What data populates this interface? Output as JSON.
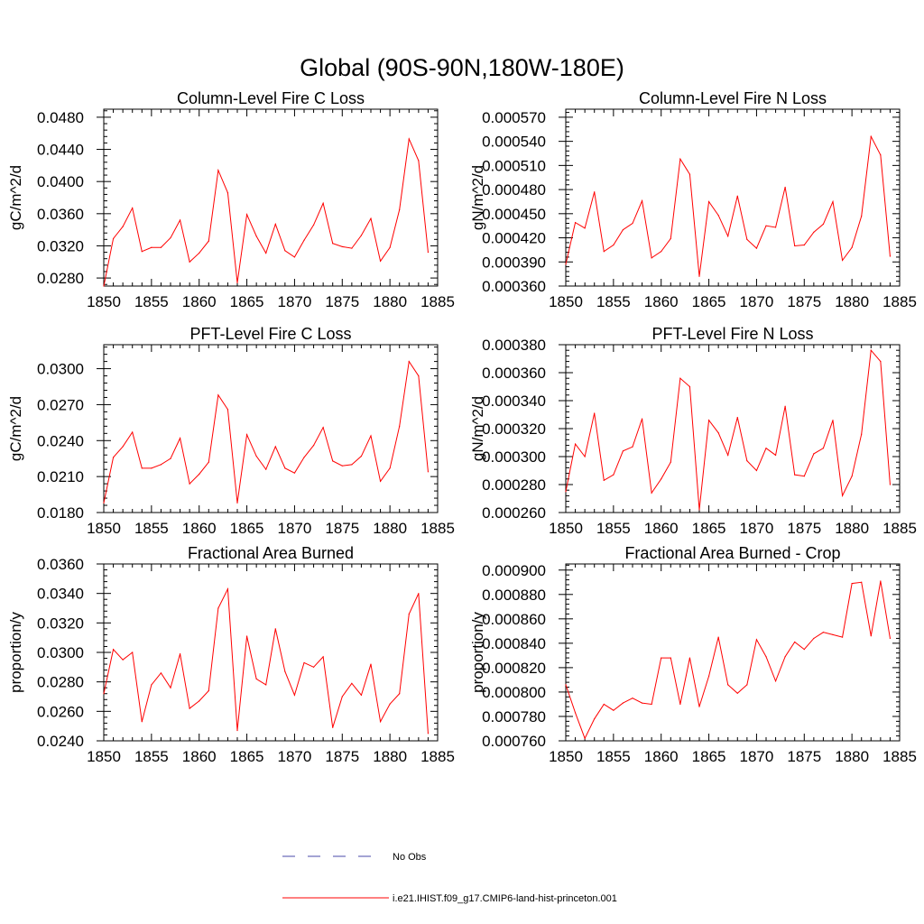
{
  "title": "Global (90S-90N,180W-180E)",
  "colors": {
    "series": "#ff0000",
    "no_obs": "#4a4aa8",
    "axis": "#000000"
  },
  "legend": {
    "entries": [
      {
        "label": "No Obs",
        "style": "dashed",
        "color": "#4a4aa8"
      },
      {
        "label": "i.e21.IHIST.f09_g17.CMIP6-land-hist-princeton.001",
        "style": "solid",
        "color": "#ff0000"
      }
    ]
  },
  "chart_data": [
    {
      "type": "line",
      "title": "Column-Level Fire C Loss",
      "ylabel": "gC/m^2/d",
      "xlim": [
        1850,
        1885
      ],
      "ylim": [
        0.027,
        0.049
      ],
      "x_ticks": [
        "1850",
        "1855",
        "1860",
        "1865",
        "1870",
        "1875",
        "1880",
        "1885"
      ],
      "y_ticks": [
        "0.0280",
        "0.0320",
        "0.0360",
        "0.0400",
        "0.0440",
        "0.0480"
      ],
      "x": [
        1850,
        1851,
        1852,
        1853,
        1854,
        1855,
        1856,
        1857,
        1858,
        1859,
        1860,
        1861,
        1862,
        1863,
        1864,
        1865,
        1866,
        1867,
        1868,
        1869,
        1870,
        1871,
        1872,
        1873,
        1874,
        1875,
        1876,
        1877,
        1878,
        1879,
        1880,
        1881,
        1882,
        1883,
        1884
      ],
      "series": [
        {
          "values": [
            0.027,
            0.0329,
            0.0344,
            0.0367,
            0.0313,
            0.0318,
            0.0318,
            0.033,
            0.0352,
            0.03,
            0.0311,
            0.0326,
            0.0414,
            0.0386,
            0.0274,
            0.0359,
            0.0332,
            0.0311,
            0.0347,
            0.0314,
            0.0306,
            0.0327,
            0.0346,
            0.0373,
            0.0323,
            0.0319,
            0.0317,
            0.0333,
            0.0354,
            0.0301,
            0.0318,
            0.0365,
            0.0453,
            0.0426,
            0.0312
          ]
        }
      ]
    },
    {
      "type": "line",
      "title": "Column-Level Fire N Loss",
      "ylabel": "gN/m^2/d",
      "xlim": [
        1850,
        1885
      ],
      "ylim": [
        0.00036,
        0.00058
      ],
      "x_ticks": [
        "1850",
        "1855",
        "1860",
        "1865",
        "1870",
        "1875",
        "1880",
        "1885"
      ],
      "y_ticks": [
        "0.000360",
        "0.000390",
        "0.000420",
        "0.000450",
        "0.000480",
        "0.000510",
        "0.000540",
        "0.000570"
      ],
      "x": [
        1850,
        1851,
        1852,
        1853,
        1854,
        1855,
        1856,
        1857,
        1858,
        1859,
        1860,
        1861,
        1862,
        1863,
        1864,
        1865,
        1866,
        1867,
        1868,
        1869,
        1870,
        1871,
        1872,
        1873,
        1874,
        1875,
        1876,
        1877,
        1878,
        1879,
        1880,
        1881,
        1882,
        1883,
        1884
      ],
      "series": [
        {
          "values": [
            0.000387,
            0.000439,
            0.000432,
            0.000477,
            0.000403,
            0.000411,
            0.00043,
            0.000438,
            0.000466,
            0.000395,
            0.000403,
            0.000419,
            0.000518,
            0.000499,
            0.000372,
            0.000465,
            0.000448,
            0.000422,
            0.000472,
            0.000418,
            0.000407,
            0.000435,
            0.000433,
            0.000483,
            0.00041,
            0.000411,
            0.000427,
            0.000437,
            0.000465,
            0.000392,
            0.000408,
            0.000447,
            0.000546,
            0.000523,
            0.000397
          ]
        }
      ]
    },
    {
      "type": "line",
      "title": "PFT-Level Fire C Loss",
      "ylabel": "gC/m^2/d",
      "xlim": [
        1850,
        1885
      ],
      "ylim": [
        0.018,
        0.032
      ],
      "x_ticks": [
        "1850",
        "1855",
        "1860",
        "1865",
        "1870",
        "1875",
        "1880",
        "1885"
      ],
      "y_ticks": [
        "0.0180",
        "0.0210",
        "0.0240",
        "0.0270",
        "0.0300"
      ],
      "x": [
        1850,
        1851,
        1852,
        1853,
        1854,
        1855,
        1856,
        1857,
        1858,
        1859,
        1860,
        1861,
        1862,
        1863,
        1864,
        1865,
        1866,
        1867,
        1868,
        1869,
        1870,
        1871,
        1872,
        1873,
        1874,
        1875,
        1876,
        1877,
        1878,
        1879,
        1880,
        1881,
        1882,
        1883,
        1884
      ],
      "series": [
        {
          "values": [
            0.0188,
            0.0226,
            0.0235,
            0.0247,
            0.0217,
            0.0217,
            0.022,
            0.0225,
            0.0242,
            0.0204,
            0.0212,
            0.0222,
            0.0278,
            0.0266,
            0.0188,
            0.0245,
            0.0227,
            0.0216,
            0.0235,
            0.0217,
            0.0213,
            0.0226,
            0.0236,
            0.0251,
            0.0223,
            0.0219,
            0.022,
            0.0227,
            0.0244,
            0.0206,
            0.0217,
            0.0252,
            0.0306,
            0.0294,
            0.0214
          ]
        }
      ]
    },
    {
      "type": "line",
      "title": "PFT-Level Fire N Loss",
      "ylabel": "gN/m^2/d",
      "xlim": [
        1850,
        1885
      ],
      "ylim": [
        0.00026,
        0.00038
      ],
      "x_ticks": [
        "1850",
        "1855",
        "1860",
        "1865",
        "1870",
        "1875",
        "1880",
        "1885"
      ],
      "y_ticks": [
        "0.000260",
        "0.000280",
        "0.000300",
        "0.000320",
        "0.000340",
        "0.000360",
        "0.000380"
      ],
      "x": [
        1850,
        1851,
        1852,
        1853,
        1854,
        1855,
        1856,
        1857,
        1858,
        1859,
        1860,
        1861,
        1862,
        1863,
        1864,
        1865,
        1866,
        1867,
        1868,
        1869,
        1870,
        1871,
        1872,
        1873,
        1874,
        1875,
        1876,
        1877,
        1878,
        1879,
        1880,
        1881,
        1882,
        1883,
        1884
      ],
      "series": [
        {
          "values": [
            0.000275,
            0.000309,
            0.0003,
            0.000331,
            0.000283,
            0.000287,
            0.000304,
            0.000307,
            0.000327,
            0.000274,
            0.000284,
            0.000296,
            0.000356,
            0.00035,
            0.000262,
            0.000326,
            0.000317,
            0.000301,
            0.000328,
            0.000297,
            0.00029,
            0.000306,
            0.000301,
            0.000336,
            0.000287,
            0.000286,
            0.000302,
            0.000306,
            0.000326,
            0.000272,
            0.000286,
            0.000316,
            0.000376,
            0.000368,
            0.00028
          ]
        }
      ]
    },
    {
      "type": "line",
      "title": "Fractional Area Burned",
      "ylabel": "proportion/y",
      "xlim": [
        1850,
        1885
      ],
      "ylim": [
        0.024,
        0.036
      ],
      "x_ticks": [
        "1850",
        "1855",
        "1860",
        "1865",
        "1870",
        "1875",
        "1880",
        "1885"
      ],
      "y_ticks": [
        "0.0240",
        "0.0260",
        "0.0280",
        "0.0300",
        "0.0320",
        "0.0340",
        "0.0360"
      ],
      "x": [
        1850,
        1851,
        1852,
        1853,
        1854,
        1855,
        1856,
        1857,
        1858,
        1859,
        1860,
        1861,
        1862,
        1863,
        1864,
        1865,
        1866,
        1867,
        1868,
        1869,
        1870,
        1871,
        1872,
        1873,
        1874,
        1875,
        1876,
        1877,
        1878,
        1879,
        1880,
        1881,
        1882,
        1883,
        1884
      ],
      "series": [
        {
          "values": [
            0.0272,
            0.0302,
            0.0295,
            0.03,
            0.0253,
            0.0278,
            0.0286,
            0.0276,
            0.0299,
            0.0262,
            0.0267,
            0.0274,
            0.033,
            0.0343,
            0.0247,
            0.0311,
            0.0282,
            0.0278,
            0.0316,
            0.0287,
            0.0271,
            0.0293,
            0.029,
            0.0297,
            0.0249,
            0.027,
            0.0279,
            0.0271,
            0.0292,
            0.0253,
            0.0265,
            0.0272,
            0.0326,
            0.034,
            0.0245
          ]
        }
      ]
    },
    {
      "type": "line",
      "title": "Fractional Area Burned - Crop",
      "ylabel": "proportion/y",
      "xlim": [
        1850,
        1885
      ],
      "ylim": [
        0.00076,
        0.000905
      ],
      "x_ticks": [
        "1850",
        "1855",
        "1860",
        "1865",
        "1870",
        "1875",
        "1880",
        "1885"
      ],
      "y_ticks": [
        "0.000760",
        "0.000780",
        "0.000800",
        "0.000820",
        "0.000840",
        "0.000860",
        "0.000880",
        "0.000900"
      ],
      "x": [
        1850,
        1851,
        1852,
        1853,
        1854,
        1855,
        1856,
        1857,
        1858,
        1859,
        1860,
        1861,
        1862,
        1863,
        1864,
        1865,
        1866,
        1867,
        1868,
        1869,
        1870,
        1871,
        1872,
        1873,
        1874,
        1875,
        1876,
        1877,
        1878,
        1879,
        1880,
        1881,
        1882,
        1883,
        1884
      ],
      "series": [
        {
          "values": [
            0.000806,
            0.000783,
            0.000762,
            0.000778,
            0.00079,
            0.000785,
            0.000791,
            0.000795,
            0.000791,
            0.00079,
            0.000828,
            0.000828,
            0.00079,
            0.000828,
            0.000788,
            0.000813,
            0.000845,
            0.000806,
            0.000799,
            0.000806,
            0.000843,
            0.000829,
            0.000809,
            0.000829,
            0.000841,
            0.000835,
            0.000844,
            0.000849,
            0.000847,
            0.000845,
            0.000889,
            0.00089,
            0.000846,
            0.000891,
            0.000844
          ]
        }
      ]
    }
  ]
}
